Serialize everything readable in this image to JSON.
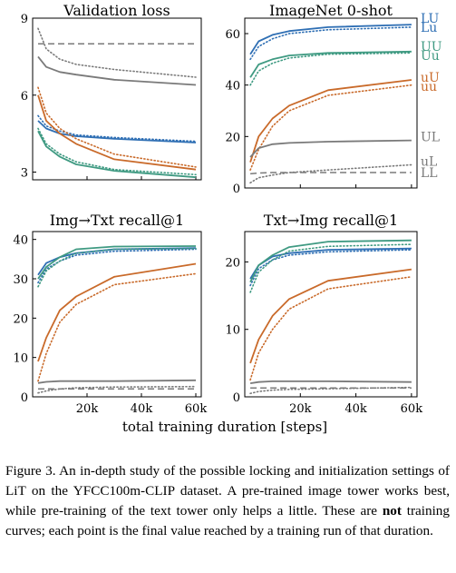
{
  "xlabel": "total training duration [steps]",
  "caption": {
    "before": "Figure 3.  An in-depth study of the possible locking and initialization settings of LiT on the YFCC100m-CLIP dataset.  A pre-trained image tower works best, while pre-training of the text tower only helps a little. These are ",
    "bold": "not",
    "after": " training curves; each point is the final value reached by a training run of that duration."
  },
  "colors": {
    "LU": "#2f6fb4",
    "UU": "#3f9a82",
    "uU": "#c96a2a",
    "UL": "#7a7a7a",
    "uL": "#7a7a7a",
    "LL": "#7a7a7a"
  },
  "chart_data": [
    {
      "type": "line",
      "title": "Validation loss",
      "x": [
        2000,
        5000,
        10000,
        16000,
        30000,
        60000
      ],
      "xlim": [
        0,
        62000
      ],
      "ylim": [
        2.7,
        9
      ],
      "yticks": [
        3,
        6,
        9
      ],
      "xticks": [],
      "series": [
        {
          "key": "LU",
          "dash": "solid",
          "values": [
            5.0,
            4.7,
            4.5,
            4.4,
            4.3,
            4.15
          ]
        },
        {
          "key": "Lu",
          "dash": "dotted",
          "values": [
            5.2,
            4.8,
            4.6,
            4.45,
            4.35,
            4.2
          ]
        },
        {
          "key": "UU",
          "dash": "solid",
          "values": [
            4.6,
            4.0,
            3.6,
            3.3,
            3.05,
            2.8
          ]
        },
        {
          "key": "Uu",
          "dash": "dotted",
          "values": [
            4.7,
            4.1,
            3.7,
            3.4,
            3.1,
            2.9
          ]
        },
        {
          "key": "uU",
          "dash": "solid",
          "values": [
            6.0,
            5.0,
            4.5,
            4.1,
            3.5,
            3.1
          ]
        },
        {
          "key": "uu",
          "dash": "dotted",
          "values": [
            6.3,
            5.3,
            4.7,
            4.3,
            3.7,
            3.2
          ]
        },
        {
          "key": "UL",
          "dash": "solid",
          "values": [
            7.5,
            7.1,
            6.9,
            6.8,
            6.6,
            6.4
          ]
        },
        {
          "key": "uL",
          "dash": "dotted",
          "values": [
            8.6,
            7.8,
            7.4,
            7.2,
            7.0,
            6.7
          ]
        },
        {
          "key": "LL",
          "dash": "dashed",
          "values": [
            8.0,
            8.0,
            8.0,
            8.0,
            8.0,
            8.0
          ]
        }
      ]
    },
    {
      "type": "line",
      "title": "ImageNet 0-shot",
      "x": [
        2000,
        5000,
        10000,
        16000,
        30000,
        60000
      ],
      "xlim": [
        0,
        62000
      ],
      "ylim": [
        0,
        66
      ],
      "yticks": [
        0,
        20,
        40,
        60
      ],
      "xticks": [],
      "labels": [
        {
          "text": "LU",
          "key": "LU",
          "y": 66
        },
        {
          "text": "Lu",
          "key": "LU",
          "y": 62.5
        },
        {
          "text": "UU",
          "key": "UU",
          "y": 55
        },
        {
          "text": "Uu",
          "key": "UU",
          "y": 51.5
        },
        {
          "text": "uU",
          "key": "uU",
          "y": 43
        },
        {
          "text": "uu",
          "key": "uU",
          "y": 39.5
        },
        {
          "text": "UL",
          "key": "UL",
          "y": 20
        },
        {
          "text": "uL",
          "key": "uL",
          "y": 10.5
        },
        {
          "text": "LL",
          "key": "LL",
          "y": 6
        }
      ],
      "series": [
        {
          "key": "LU",
          "dash": "solid",
          "values": [
            52,
            57,
            59.5,
            61,
            62.5,
            63.5
          ]
        },
        {
          "key": "Lu",
          "dash": "dotted",
          "values": [
            50,
            55,
            58,
            60,
            61.5,
            62.5
          ]
        },
        {
          "key": "UU",
          "dash": "solid",
          "values": [
            43,
            48,
            50,
            51.5,
            52.5,
            53
          ]
        },
        {
          "key": "Uu",
          "dash": "dotted",
          "values": [
            40,
            45.5,
            48.5,
            50.5,
            52,
            52.5
          ]
        },
        {
          "key": "uU",
          "dash": "solid",
          "values": [
            10,
            20,
            27,
            32,
            38,
            42
          ]
        },
        {
          "key": "uu",
          "dash": "dotted",
          "values": [
            7,
            15,
            24,
            30,
            36,
            40
          ]
        },
        {
          "key": "UL",
          "dash": "solid",
          "values": [
            12,
            15.5,
            17,
            17.5,
            18,
            18.5
          ]
        },
        {
          "key": "uL",
          "dash": "dotted",
          "values": [
            2,
            4,
            5,
            6,
            7,
            9
          ]
        },
        {
          "key": "LL",
          "dash": "dashed",
          "values": [
            5.5,
            5.8,
            6,
            6,
            6,
            6
          ]
        }
      ]
    },
    {
      "type": "line",
      "title": "Img→Txt recall@1",
      "x": [
        2000,
        5000,
        10000,
        16000,
        30000,
        60000
      ],
      "xlim": [
        0,
        62000
      ],
      "ylim": [
        0,
        42
      ],
      "yticks": [
        0,
        10,
        20,
        30,
        40
      ],
      "xticks": [
        "20k",
        "40k",
        "60k"
      ],
      "series": [
        {
          "key": "LU",
          "dash": "solid",
          "values": [
            31,
            34,
            35.5,
            36.5,
            37.5,
            37.8
          ]
        },
        {
          "key": "Lu",
          "dash": "dotted",
          "values": [
            29,
            32.5,
            34.5,
            36,
            37,
            37.5
          ]
        },
        {
          "key": "UU",
          "dash": "solid",
          "values": [
            30,
            33,
            35.5,
            37.5,
            38.2,
            38.3
          ]
        },
        {
          "key": "Uu",
          "dash": "dotted",
          "values": [
            28,
            32,
            34.5,
            36.5,
            37.5,
            37.7
          ]
        },
        {
          "key": "uU",
          "dash": "solid",
          "values": [
            9,
            15,
            22,
            25.5,
            30.5,
            33.8
          ]
        },
        {
          "key": "uu",
          "dash": "dotted",
          "values": [
            4,
            11,
            19,
            23.5,
            28.5,
            31.3
          ]
        },
        {
          "key": "UL",
          "dash": "solid",
          "values": [
            3.5,
            3.8,
            4,
            4,
            4,
            4.2
          ]
        },
        {
          "key": "uL",
          "dash": "dotted",
          "values": [
            1,
            1.5,
            2,
            2.3,
            2.5,
            2.6
          ]
        },
        {
          "key": "LL",
          "dash": "dashed",
          "values": [
            2,
            2,
            2,
            2,
            2,
            2
          ]
        }
      ]
    },
    {
      "type": "line",
      "title": "Txt→Img recall@1",
      "x": [
        2000,
        5000,
        10000,
        16000,
        30000,
        60000
      ],
      "xlim": [
        0,
        62000
      ],
      "ylim": [
        0,
        24.5
      ],
      "yticks": [
        0,
        10,
        20
      ],
      "xticks": [
        "20k",
        "40k",
        "60k"
      ],
      "series": [
        {
          "key": "LU",
          "dash": "solid",
          "values": [
            17.5,
            19.5,
            20.8,
            21.3,
            21.8,
            22.0
          ]
        },
        {
          "key": "Lu",
          "dash": "dotted",
          "values": [
            16.5,
            19,
            20.3,
            21,
            21.5,
            21.8
          ]
        },
        {
          "key": "UU",
          "dash": "solid",
          "values": [
            17,
            19.5,
            21,
            22.2,
            23,
            23.2
          ]
        },
        {
          "key": "Uu",
          "dash": "dotted",
          "values": [
            15.5,
            18.5,
            20.3,
            21.6,
            22.3,
            22.6
          ]
        },
        {
          "key": "uU",
          "dash": "solid",
          "values": [
            5,
            8.5,
            12,
            14.5,
            17.2,
            18.9
          ]
        },
        {
          "key": "uu",
          "dash": "dotted",
          "values": [
            2.5,
            6.5,
            10,
            13,
            16,
            17.8
          ]
        },
        {
          "key": "UL",
          "dash": "solid",
          "values": [
            2,
            2.2,
            2.3,
            2.3,
            2.3,
            2.2
          ]
        },
        {
          "key": "uL",
          "dash": "dotted",
          "values": [
            0.5,
            0.8,
            1,
            1.1,
            1.2,
            1.4
          ]
        },
        {
          "key": "LL",
          "dash": "dashed",
          "values": [
            1.3,
            1.3,
            1.3,
            1.3,
            1.3,
            1.3
          ]
        }
      ]
    }
  ]
}
